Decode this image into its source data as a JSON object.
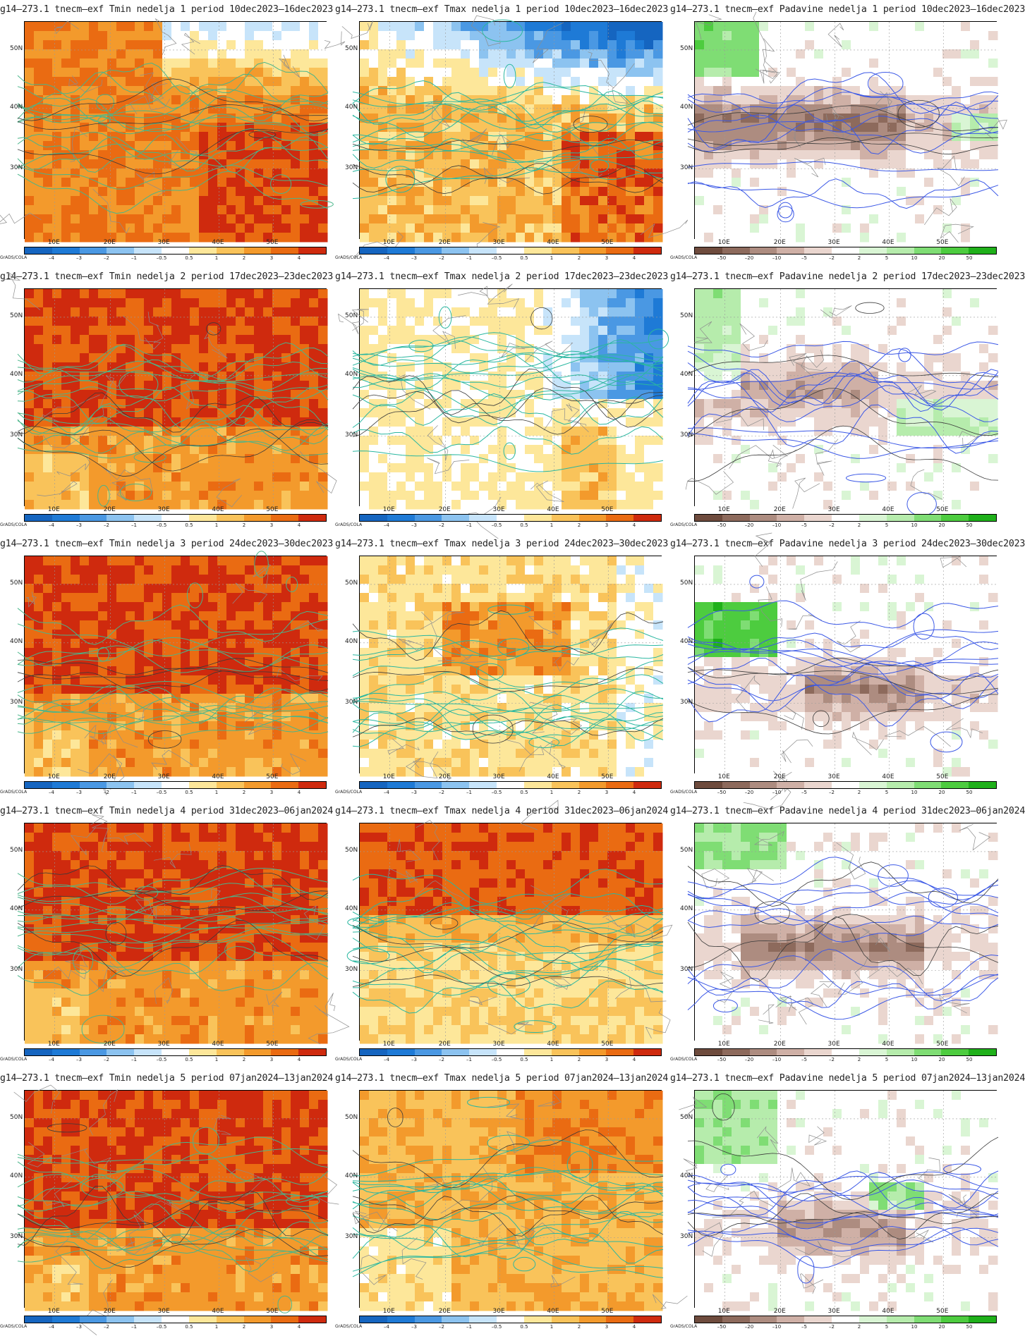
{
  "rows": [
    {
      "week": 1,
      "period": "10dec2023–16dec2023",
      "titles": [
        "g14–273.1 tnecm–exf Tmin nedelja 1 period 10dec2023–16dec2023",
        "g14–273.1 tnecm–exf Tmax nedelja 1 period 10dec2023–16dec2023",
        "g14–273.1 tnecm–exf Padavine nedelja 1 period 10dec2023–16dec2023"
      ]
    },
    {
      "week": 2,
      "period": "17dec2023–23dec2023",
      "titles": [
        "g14–273.1 tnecm–exf Tmin nedelja 2 period 17dec2023–23dec2023",
        "g14–273.1 tnecm–exf Tmax nedelja 2 period 17dec2023–23dec2023",
        "g14–273.1 tnecm–exf Padavine nedelja 2 period 17dec2023–23dec2023"
      ]
    },
    {
      "week": 3,
      "period": "24dec2023–30dec2023",
      "titles": [
        "g14–273.1 tnecm–exf Tmin nedelja 3 period 24dec2023–30dec2023",
        "g14–273.1 tnecm–exf Tmax nedelja 3 period 24dec2023–30dec2023",
        "g14–273.1 tnecm–exf Padavine nedelja 3 period 24dec2023–30dec2023"
      ]
    },
    {
      "week": 4,
      "period": "31dec2023–06jan2024",
      "titles": [
        "g14–273.1 tnecm–exf Tmin nedelja 4 period 31dec2023–06jan2024",
        "g14–273.1 tnecm–exf Tmax nedelja 4 period 31dec2023–06jan2024",
        "g14–273.1 tnecm–exf Padavine nedelja 4 period 31dec2023–06jan2024"
      ]
    },
    {
      "week": 5,
      "period": "07jan2024–13jan2024",
      "titles": [
        "g14–273.1 tnecm–exf Tmin nedelja 5 period 07jan2024–13jan2024",
        "g14–273.1 tnecm–exf Tmax nedelja 5 period 07jan2024–13jan2024",
        "g14–273.1 tnecm–exf Padavine nedelja 5 period 07jan2024–13jan2024"
      ]
    }
  ],
  "axes": {
    "lat_labels": [
      "50N",
      "40N",
      "30N"
    ],
    "lon_labels": [
      "10E",
      "20E",
      "30E",
      "40E",
      "50E"
    ]
  },
  "colorbars": {
    "temperature": {
      "ticks": [
        "–4",
        "–3",
        "–2",
        "–1",
        "–0.5",
        "0.5",
        "1",
        "2",
        "3",
        "4"
      ],
      "colors": [
        "#1565c0",
        "#1e7ad6",
        "#4a98e3",
        "#8cc3f0",
        "#c7e4fa",
        "#ffffff",
        "#fde79a",
        "#f9c35a",
        "#f39a2c",
        "#ea6b12",
        "#cf2a0e"
      ]
    },
    "precip": {
      "ticks": [
        "–50",
        "–20",
        "–10",
        "–5",
        "–2",
        "2",
        "5",
        "10",
        "20",
        "50"
      ],
      "colors": [
        "#6e4b3d",
        "#8d6a5c",
        "#ad8c80",
        "#cfb0a6",
        "#ead6cf",
        "#ffffff",
        "#d9f5d4",
        "#b6ecac",
        "#7fdd74",
        "#4dcc3f",
        "#1fb01a"
      ]
    }
  },
  "branding": "GrADS/COLA",
  "panel_fields": [
    {
      "field": "Tmin",
      "colorbar": "temperature",
      "contour_color": "#4ab58a"
    },
    {
      "field": "Tmax",
      "colorbar": "temperature",
      "contour_color": "#2ab7a0"
    },
    {
      "field": "Padavine",
      "colorbar": "precip",
      "contour_color": "#3b58e6"
    }
  ],
  "panel_fill_profiles": [
    [
      "warm-strong-north-cold",
      "mixed-cold-north",
      "dry-central-band"
    ],
    [
      "very-warm",
      "cold-east-mild",
      "mixed-dry-wet"
    ],
    [
      "very-warm",
      "warm-central",
      "wet-west-dry-central"
    ],
    [
      "very-warm",
      "warm-north",
      "dry-central"
    ],
    [
      "very-warm",
      "warm-widespread",
      "mixed-dry-wet-east"
    ]
  ]
}
